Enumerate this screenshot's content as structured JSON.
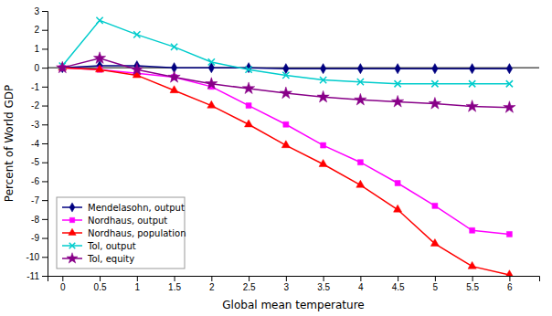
{
  "chart_data": {
    "type": "line",
    "xlabel": "Global mean temperature",
    "ylabel": "Percent of World GDP",
    "x": [
      0,
      0.5,
      1,
      1.5,
      2,
      2.5,
      3,
      3.5,
      4,
      4.5,
      5,
      5.5,
      6
    ],
    "xlim": [
      -0.2,
      6.4
    ],
    "xticks": [
      0,
      0.5,
      1,
      1.5,
      2,
      2.5,
      3,
      3.5,
      4,
      4.5,
      5,
      5.5,
      6
    ],
    "ylim": [
      -11,
      3
    ],
    "yticks": [
      3,
      2,
      1,
      0,
      -1,
      -2,
      -3,
      -4,
      -5,
      -6,
      -7,
      -8,
      -9,
      -10,
      -11
    ],
    "legend": "lower left",
    "series": [
      {
        "name": "Mendelasohn, output",
        "color": "#000080",
        "marker": "diamond",
        "values": [
          0,
          0.1,
          0.1,
          0.0,
          0.0,
          0.0,
          -0.05,
          -0.05,
          -0.05,
          -0.05,
          -0.05,
          -0.05,
          -0.05
        ]
      },
      {
        "name": "Nordhaus, output",
        "color": "#FF00FF",
        "marker": "square",
        "values": [
          0,
          -0.1,
          -0.3,
          -0.5,
          -1.0,
          -2.0,
          -3.0,
          -4.1,
          -5.0,
          -6.1,
          -7.3,
          -8.6,
          -8.8
        ]
      },
      {
        "name": "Nordhaus, population",
        "color": "#FF0000",
        "marker": "triangle",
        "values": [
          0,
          -0.1,
          -0.4,
          -1.2,
          -2.0,
          -3.0,
          -4.1,
          -5.1,
          -6.2,
          -7.5,
          -9.3,
          -10.5,
          -10.95
        ]
      },
      {
        "name": "Tol, output",
        "color": "#00CCCC",
        "marker": "x",
        "values": [
          0.1,
          2.5,
          1.75,
          1.1,
          0.3,
          -0.1,
          -0.4,
          -0.65,
          -0.75,
          -0.85,
          -0.85,
          -0.85,
          -0.85
        ]
      },
      {
        "name": "Tol, equity",
        "color": "#880088",
        "marker": "star",
        "values": [
          0,
          0.5,
          -0.1,
          -0.5,
          -0.85,
          -1.1,
          -1.35,
          -1.55,
          -1.7,
          -1.8,
          -1.9,
          -2.05,
          -2.1
        ]
      }
    ]
  }
}
